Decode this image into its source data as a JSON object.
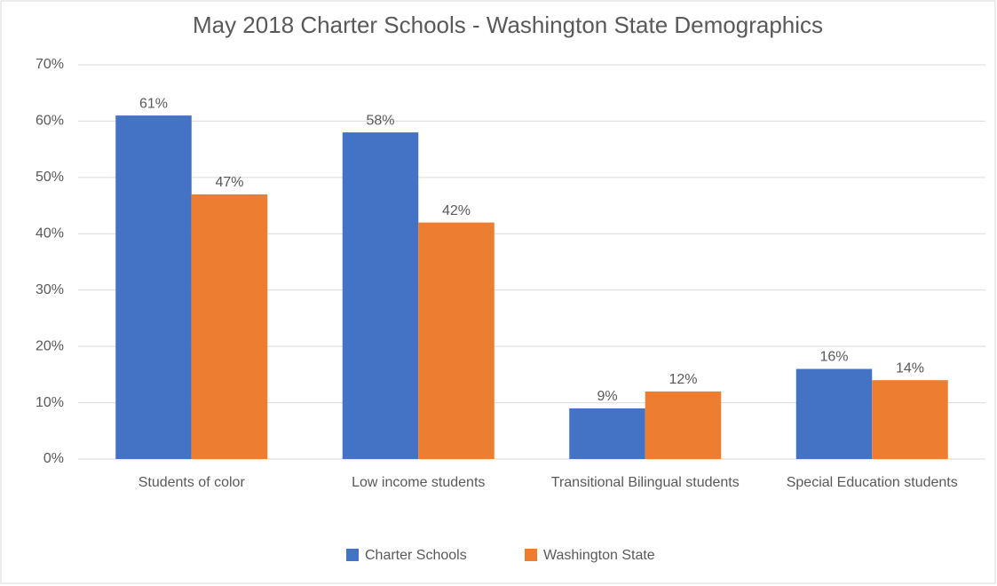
{
  "chart_data": {
    "type": "bar",
    "title": "May 2018 Charter Schools - Washington State Demographics",
    "categories": [
      "Students of color",
      "Low income students",
      "Transitional Bilingual students",
      "Special Education students"
    ],
    "series": [
      {
        "name": "Charter Schools",
        "color": "#4472c4",
        "values": [
          61,
          58,
          9,
          16
        ],
        "value_labels": [
          "61%",
          "58%",
          "9%",
          "16%"
        ]
      },
      {
        "name": "Washington State",
        "color": "#ed7d31",
        "values": [
          47,
          42,
          12,
          14
        ],
        "value_labels": [
          "47%",
          "42%",
          "12%",
          "14%"
        ]
      }
    ],
    "ylim": [
      0,
      70
    ],
    "yticks": [
      {
        "value": 0,
        "label": "0%"
      },
      {
        "value": 10,
        "label": "10%"
      },
      {
        "value": 20,
        "label": "20%"
      },
      {
        "value": 30,
        "label": "30%"
      },
      {
        "value": 40,
        "label": "40%"
      },
      {
        "value": 50,
        "label": "50%"
      },
      {
        "value": 60,
        "label": "60%"
      },
      {
        "value": 70,
        "label": "70%"
      }
    ],
    "grid": true,
    "legend": "bottom"
  }
}
